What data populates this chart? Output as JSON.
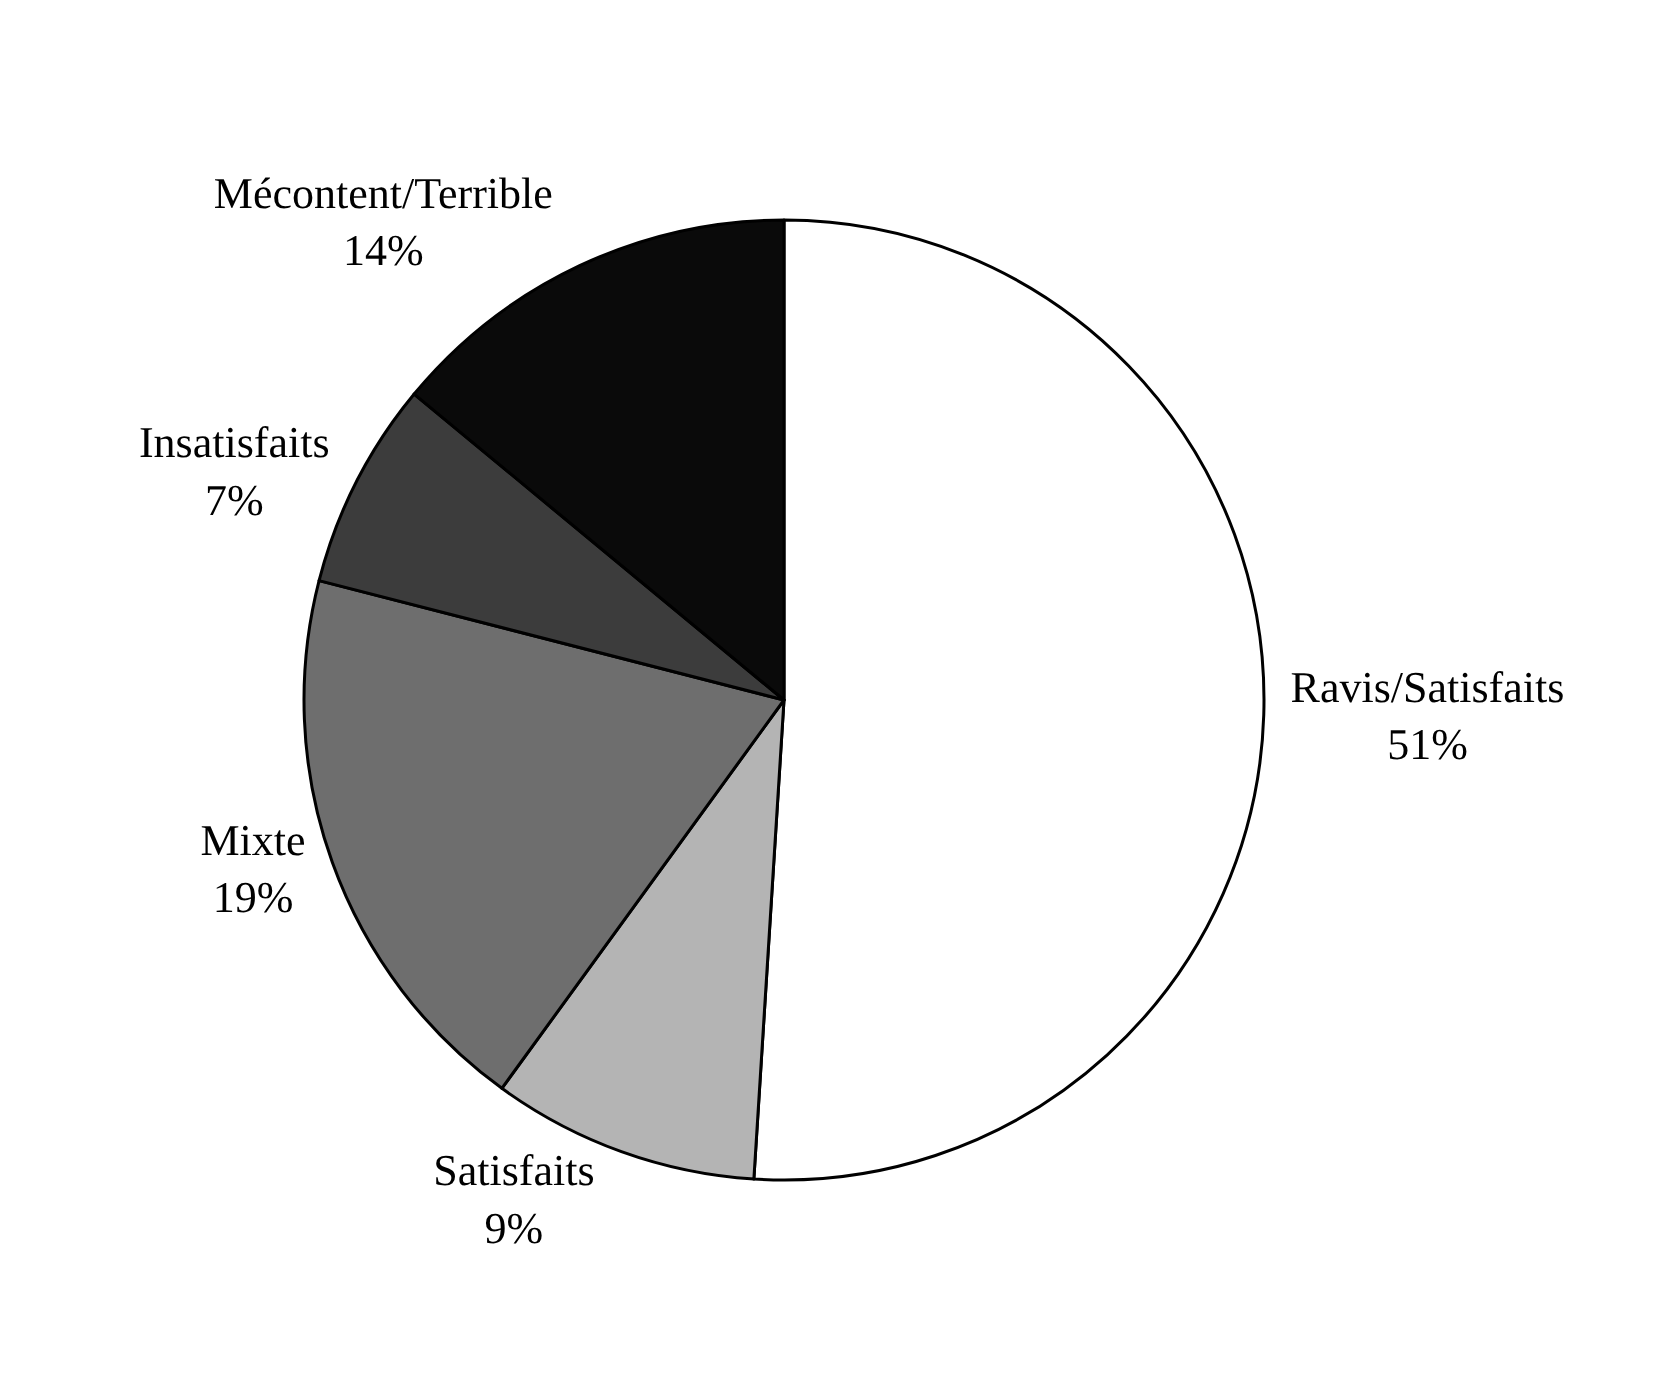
{
  "chart_data": {
    "type": "pie",
    "categories": [
      "Ravis/Satisfaits",
      "Satisfaits",
      "Mixte",
      "Insatisfaits",
      "Mécontent/Terrible"
    ],
    "values": [
      51,
      9,
      19,
      7,
      14
    ],
    "value_labels": [
      "51%",
      "9%",
      "19%",
      "7%",
      "14%"
    ],
    "colors": [
      "#ffffff",
      "#b4b4b4",
      "#6e6e6e",
      "#3c3c3c",
      "#0a0a0a"
    ],
    "legend": false
  }
}
